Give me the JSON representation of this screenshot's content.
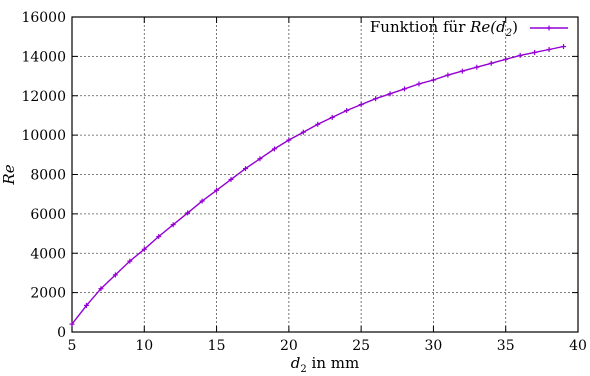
{
  "chart_data": {
    "type": "line",
    "title": "",
    "xlabel": "d",
    "xlabel_sub": "2",
    "xlabel_rest": " in mm",
    "ylabel": "Re",
    "xlim": [
      5,
      40
    ],
    "ylim": [
      0,
      16000
    ],
    "xticks": [
      5,
      10,
      15,
      20,
      25,
      30,
      35,
      40
    ],
    "yticks": [
      0,
      2000,
      4000,
      6000,
      8000,
      10000,
      12000,
      14000,
      16000
    ],
    "grid": true,
    "legend_position": "top-right",
    "legend_text_prefix": "Funktion für ",
    "legend_text_math": "Re(d",
    "legend_text_sub": "2",
    "legend_text_suffix": ")",
    "series": [
      {
        "name": "Funktion für Re(d2)",
        "color": "#9400d3",
        "x": [
          5,
          6,
          7,
          8,
          9,
          10,
          11,
          12,
          13,
          14,
          15,
          16,
          17,
          18,
          19,
          20,
          21,
          22,
          23,
          24,
          25,
          26,
          27,
          28,
          29,
          30,
          31,
          32,
          33,
          34,
          35,
          36,
          37,
          38,
          39
        ],
        "y": [
          400,
          1350,
          2200,
          2900,
          3600,
          4200,
          4850,
          5450,
          6050,
          6650,
          7200,
          7750,
          8300,
          8800,
          9300,
          9750,
          10150,
          10550,
          10900,
          11250,
          11550,
          11850,
          12100,
          12350,
          12600,
          12800,
          13050,
          13250,
          13450,
          13650,
          13850,
          14050,
          14200,
          14350,
          14500
        ]
      }
    ]
  }
}
